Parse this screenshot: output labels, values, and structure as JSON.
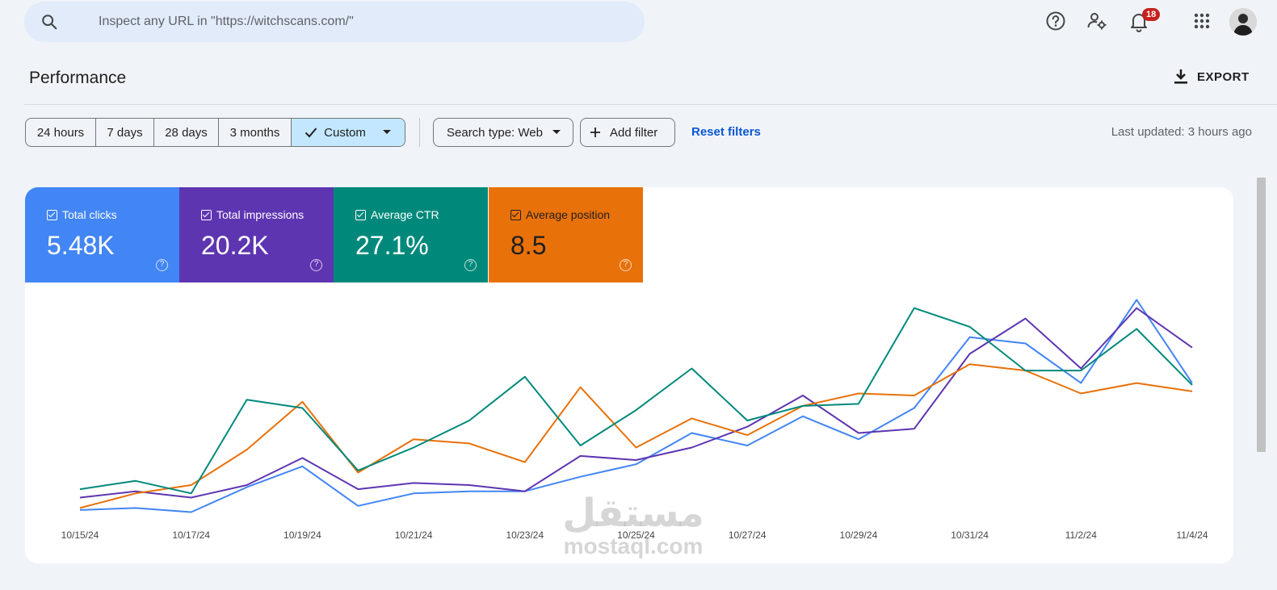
{
  "search": {
    "placeholder": "Inspect any URL in \"https://witchscans.com/\"",
    "icon": "search-icon"
  },
  "topbar": {
    "notifications_count": "18",
    "icons": [
      "help-icon",
      "manage-users-icon",
      "notifications-icon",
      "apps-grid-icon",
      "avatar"
    ]
  },
  "page": {
    "title": "Performance",
    "export_label": "EXPORT"
  },
  "filters": {
    "ranges": [
      {
        "label": "24 hours",
        "selected": false
      },
      {
        "label": "7 days",
        "selected": false
      },
      {
        "label": "28 days",
        "selected": false
      },
      {
        "label": "3 months",
        "selected": false
      },
      {
        "label": "Custom",
        "selected": true
      }
    ],
    "search_type": "Search type: Web",
    "add_filter": "Add filter",
    "reset": "Reset filters",
    "last_updated": "Last updated: 3 hours ago"
  },
  "metrics": [
    {
      "label": "Total clicks",
      "value": "5.48K",
      "color": "#4285f4"
    },
    {
      "label": "Total impressions",
      "value": "20.2K",
      "color": "#5e35b1"
    },
    {
      "label": "Average CTR",
      "value": "27.1%",
      "color": "#00897b"
    },
    {
      "label": "Average position",
      "value": "8.5",
      "color": "#e8710a"
    }
  ],
  "watermark": {
    "arabic": "مستقل",
    "latin": "mostaql.com"
  },
  "chart_data": {
    "type": "line",
    "x": [
      "10/15/24",
      "10/16/24",
      "10/17/24",
      "10/18/24",
      "10/19/24",
      "10/20/24",
      "10/21/24",
      "10/22/24",
      "10/23/24",
      "10/24/24",
      "10/25/24",
      "10/26/24",
      "10/27/24",
      "10/28/24",
      "10/29/24",
      "10/30/24",
      "10/31/24",
      "11/1/24",
      "11/2/24",
      "11/3/24",
      "11/4/24"
    ],
    "tick_labels": [
      "10/15/24",
      "10/17/24",
      "10/19/24",
      "10/21/24",
      "10/23/24",
      "10/25/24",
      "10/27/24",
      "10/29/24",
      "10/31/24",
      "11/2/24",
      "11/4/24"
    ],
    "ylim": [
      0,
      100
    ],
    "grid": false,
    "legend": "none",
    "series": [
      {
        "metric": "clicks",
        "color": "#4285f4",
        "values": [
          7,
          8,
          6,
          18,
          28,
          9,
          15,
          16,
          16,
          23,
          29,
          44,
          38,
          52,
          41,
          56,
          90,
          87,
          68,
          108,
          68
        ]
      },
      {
        "metric": "impressions",
        "color": "#5e35b1",
        "values": [
          13,
          16,
          13,
          19,
          32,
          17,
          20,
          19,
          16,
          33,
          31,
          37,
          47,
          62,
          44,
          46,
          82,
          99,
          75,
          104,
          85
        ]
      },
      {
        "metric": "ctr",
        "color": "#00897b",
        "values": [
          17,
          21,
          15,
          60,
          56,
          26,
          37,
          50,
          71,
          38,
          55,
          75,
          50,
          57,
          58,
          104,
          95,
          74,
          74,
          94,
          67
        ]
      },
      {
        "metric": "position",
        "color": "#e8710a",
        "values": [
          8,
          15,
          19,
          36,
          59,
          25,
          41,
          39,
          30,
          66,
          37,
          51,
          43,
          57,
          63,
          62,
          77,
          74,
          63,
          68,
          64
        ]
      }
    ]
  }
}
